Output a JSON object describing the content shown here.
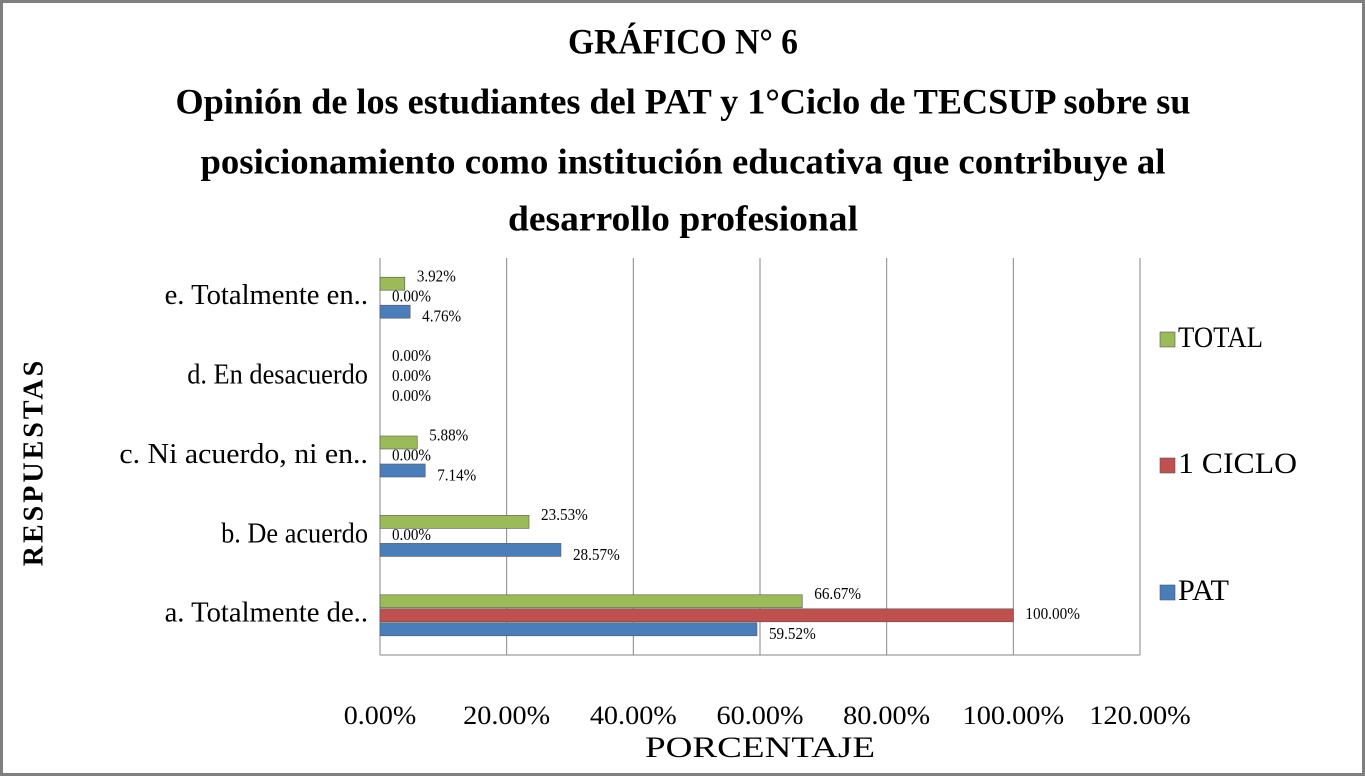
{
  "chart_data": {
    "type": "bar",
    "orientation": "horizontal",
    "title": "GRÁFICO N° 6",
    "subtitle": [
      "Opinión de los estudiantes del PAT y 1°Ciclo de TECSUP sobre su",
      "posicionamiento como institución educativa que contribuye al",
      "desarrollo profesional"
    ],
    "x_label": "PORCENTAJE",
    "y_label": "RESPUESTAS",
    "categories": [
      "a. Totalmente de..",
      "b. De acuerdo",
      "c. Ni acuerdo, ni en..",
      "d. En desacuerdo",
      "e. Totalmente en.."
    ],
    "series": [
      {
        "name": "PAT",
        "color": "#4a7ebb",
        "values": [
          59.52,
          28.57,
          7.14,
          0,
          4.76
        ],
        "value_labels": [
          "59.52%",
          "28.57%",
          "7.14%",
          "0.00%",
          "4.76%"
        ]
      },
      {
        "name": "1 CICLO",
        "color": "#c0504d",
        "values": [
          100,
          0,
          0,
          0,
          0
        ],
        "value_labels": [
          "100.00%",
          "0.00%",
          "0.00%",
          "0.00%",
          "0.00%"
        ]
      },
      {
        "name": "TOTAL",
        "color": "#9bbb59",
        "values": [
          66.67,
          23.53,
          5.88,
          0,
          3.92
        ],
        "value_labels": [
          "66.67%",
          "23.53%",
          "5.88%",
          "0.00%",
          "3.92%"
        ]
      }
    ],
    "xlim": [
      0,
      120
    ],
    "xticks": [
      {
        "value": 0,
        "label": "0.00%"
      },
      {
        "value": 20,
        "label": "20.00%"
      },
      {
        "value": 40,
        "label": "40.00%"
      },
      {
        "value": 60,
        "label": "60.00%"
      },
      {
        "value": 80,
        "label": "80.00%"
      },
      {
        "value": 100,
        "label": "100.00%"
      },
      {
        "value": 120,
        "label": "120.00%"
      }
    ],
    "grid": true,
    "legend": "right"
  }
}
